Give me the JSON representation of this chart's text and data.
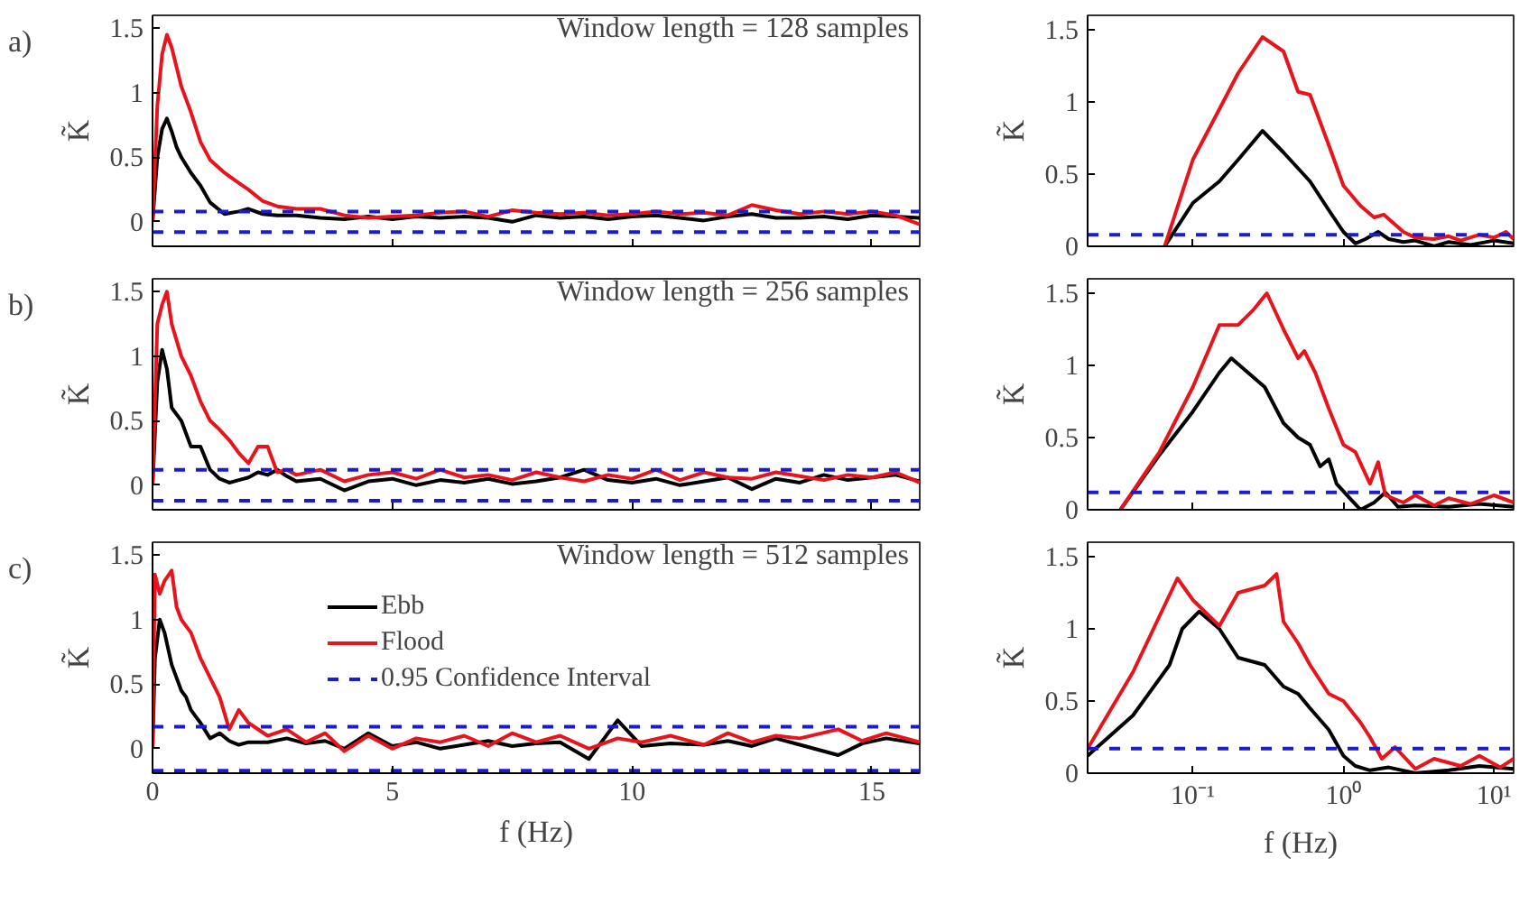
{
  "chart_data": [
    {
      "type": "line",
      "ylabel": "K̃",
      "annotations": [
        "a)",
        "Window length = 128 samples"
      ],
      "tick_labels": "y",
      "x": [
        0,
        0.1,
        0.2,
        0.3,
        0.4,
        0.5,
        0.6,
        0.8,
        1.0,
        1.2,
        1.5,
        1.8,
        2.0,
        2.3,
        2.6,
        3.0,
        3.5,
        4.0,
        4.5,
        5.0,
        5.5,
        6.0,
        6.5,
        7.0,
        7.5,
        8.0,
        8.5,
        9.0,
        9.5,
        10.0,
        10.5,
        11.0,
        11.5,
        12.0,
        12.5,
        13.0,
        13.5,
        14.0,
        14.5,
        15.0,
        15.5,
        16.0
      ],
      "series": [
        {
          "color": "#000000",
          "values": [
            0,
            0.5,
            0.72,
            0.8,
            0.7,
            0.58,
            0.5,
            0.38,
            0.28,
            0.15,
            0.06,
            0.08,
            0.1,
            0.06,
            0.05,
            0.05,
            0.03,
            0.02,
            0.04,
            0.02,
            0.04,
            0.03,
            0.04,
            0.03,
            0.0,
            0.05,
            0.03,
            0.04,
            0.02,
            0.04,
            0.05,
            0.03,
            0.01,
            0.04,
            0.06,
            0.03,
            0.03,
            0.04,
            0.02,
            0.05,
            0.04,
            0.03
          ]
        },
        {
          "color": "#e8141c",
          "values": [
            0,
            0.9,
            1.3,
            1.45,
            1.35,
            1.2,
            1.05,
            0.85,
            0.62,
            0.48,
            0.38,
            0.3,
            0.25,
            0.16,
            0.12,
            0.1,
            0.1,
            0.05,
            0.03,
            0.04,
            0.05,
            0.07,
            0.08,
            0.04,
            0.09,
            0.07,
            0.06,
            0.07,
            0.05,
            0.06,
            0.08,
            0.06,
            0.07,
            0.05,
            0.13,
            0.09,
            0.06,
            0.08,
            0.06,
            0.08,
            0.05,
            -0.02
          ]
        }
      ],
      "ref_lines": [
        {
          "axis": "y",
          "value": 0.08,
          "color": "#1c1ccc",
          "line_style": "dashed"
        },
        {
          "axis": "y",
          "value": -0.08,
          "color": "#1c1ccc",
          "line_style": "dashed"
        }
      ],
      "xlim": [
        0,
        16
      ],
      "ylim": [
        -0.19,
        1.6
      ],
      "xticks": [
        0,
        5,
        10,
        15
      ],
      "yticks": [
        0,
        0.5,
        1,
        1.5
      ],
      "line_style": "solid",
      "legend": false
    },
    {
      "type": "line",
      "ylabel": "K̃",
      "tick_labels": "y",
      "log": "x",
      "series": [
        {
          "color": "#000000",
          "x": [
            0.065,
            0.1,
            0.15,
            0.2,
            0.29,
            0.4,
            0.6,
            0.8,
            1.0,
            1.2,
            1.4,
            1.7,
            2,
            2.5,
            3,
            4,
            5,
            7,
            10,
            13.5
          ],
          "values": [
            0,
            0.3,
            0.45,
            0.6,
            0.8,
            0.65,
            0.45,
            0.25,
            0.1,
            0.02,
            0.05,
            0.1,
            0.05,
            0.03,
            0.04,
            0.0,
            0.03,
            0.01,
            0.04,
            0.02
          ]
        },
        {
          "color": "#e8141c",
          "x": [
            0.065,
            0.1,
            0.15,
            0.2,
            0.29,
            0.4,
            0.5,
            0.6,
            0.8,
            1.0,
            1.3,
            1.6,
            1.85,
            2.5,
            3,
            4,
            5,
            6,
            8,
            10,
            12,
            13.5
          ],
          "values": [
            0,
            0.6,
            0.95,
            1.2,
            1.45,
            1.35,
            1.07,
            1.05,
            0.7,
            0.42,
            0.28,
            0.2,
            0.22,
            0.1,
            0.06,
            0.05,
            0.07,
            0.04,
            0.08,
            0.06,
            0.1,
            0.05
          ]
        }
      ],
      "ref_lines": [
        {
          "axis": "y",
          "value": 0.08,
          "color": "#1c1ccc",
          "line_style": "dashed"
        }
      ],
      "xlim": [
        0.02,
        13.5
      ],
      "ylim": [
        0,
        1.6
      ],
      "xticks": [
        0.1,
        1,
        10
      ],
      "yticks": [
        0,
        0.5,
        1,
        1.5
      ],
      "line_style": "solid",
      "legend": false
    },
    {
      "type": "line",
      "ylabel": "K̃",
      "annotations": [
        "b)",
        "Window length = 256 samples"
      ],
      "tick_labels": "y",
      "x": [
        0,
        0.1,
        0.2,
        0.3,
        0.4,
        0.6,
        0.8,
        1.0,
        1.2,
        1.4,
        1.6,
        1.8,
        2.0,
        2.2,
        2.4,
        2.6,
        2.8,
        3.0,
        3.5,
        4.0,
        4.5,
        5.0,
        5.5,
        6.0,
        6.5,
        7.0,
        7.5,
        8.0,
        8.5,
        9.0,
        9.5,
        10.0,
        10.5,
        11.0,
        11.5,
        12.0,
        12.5,
        13.0,
        13.5,
        14.0,
        14.5,
        15.0,
        15.5,
        16.0
      ],
      "series": [
        {
          "color": "#000000",
          "values": [
            0,
            0.8,
            1.05,
            0.9,
            0.6,
            0.5,
            0.3,
            0.3,
            0.12,
            0.05,
            0.02,
            0.04,
            0.06,
            0.1,
            0.08,
            0.12,
            0.07,
            0.03,
            0.05,
            -0.04,
            0.03,
            0.05,
            0.0,
            0.04,
            0.02,
            0.05,
            0.01,
            0.03,
            0.06,
            0.12,
            0.04,
            0.02,
            0.05,
            0.0,
            0.03,
            0.06,
            -0.03,
            0.05,
            0.02,
            0.08,
            0.04,
            0.06,
            0.08,
            0.03
          ]
        },
        {
          "color": "#e8141c",
          "values": [
            0,
            1.25,
            1.4,
            1.5,
            1.25,
            1.0,
            0.85,
            0.65,
            0.5,
            0.43,
            0.35,
            0.25,
            0.17,
            0.3,
            0.3,
            0.1,
            0.12,
            0.08,
            0.12,
            0.03,
            0.08,
            0.1,
            0.05,
            0.12,
            0.06,
            0.08,
            0.04,
            0.1,
            0.06,
            0.03,
            0.08,
            0.05,
            0.12,
            0.04,
            0.1,
            0.06,
            0.05,
            0.1,
            0.07,
            0.04,
            0.08,
            0.06,
            0.1,
            0.02
          ]
        }
      ],
      "ref_lines": [
        {
          "axis": "y",
          "value": 0.12,
          "color": "#1c1ccc",
          "line_style": "dashed"
        },
        {
          "axis": "y",
          "value": -0.12,
          "color": "#1c1ccc",
          "line_style": "dashed"
        }
      ],
      "xlim": [
        0,
        16
      ],
      "ylim": [
        -0.19,
        1.6
      ],
      "xticks": [
        0,
        5,
        10,
        15
      ],
      "yticks": [
        0,
        0.5,
        1,
        1.5
      ],
      "line_style": "solid",
      "legend": false
    },
    {
      "type": "line",
      "ylabel": "K̃",
      "tick_labels": "y",
      "log": "x",
      "series": [
        {
          "color": "#000000",
          "x": [
            0.033,
            0.06,
            0.1,
            0.15,
            0.18,
            0.3,
            0.4,
            0.5,
            0.6,
            0.7,
            0.8,
            0.9,
            1.1,
            1.3,
            1.6,
            1.9,
            2.3,
            3,
            5,
            8,
            13.5
          ],
          "values": [
            0,
            0.38,
            0.68,
            0.95,
            1.05,
            0.85,
            0.6,
            0.5,
            0.45,
            0.3,
            0.35,
            0.18,
            0.08,
            0.0,
            0.05,
            0.12,
            0.02,
            0.03,
            0.02,
            0.04,
            0.02
          ]
        },
        {
          "color": "#e8141c",
          "x": [
            0.033,
            0.06,
            0.1,
            0.15,
            0.2,
            0.25,
            0.31,
            0.4,
            0.5,
            0.55,
            0.65,
            0.8,
            1.0,
            1.2,
            1.5,
            1.7,
            1.9,
            2.5,
            3,
            4,
            5,
            7,
            10,
            13.5
          ],
          "values": [
            0,
            0.4,
            0.85,
            1.28,
            1.28,
            1.38,
            1.5,
            1.25,
            1.05,
            1.1,
            0.95,
            0.7,
            0.45,
            0.4,
            0.18,
            0.33,
            0.1,
            0.05,
            0.1,
            0.03,
            0.08,
            0.04,
            0.1,
            0.05
          ]
        }
      ],
      "ref_lines": [
        {
          "axis": "y",
          "value": 0.12,
          "color": "#1c1ccc",
          "line_style": "dashed"
        }
      ],
      "xlim": [
        0.02,
        13.5
      ],
      "ylim": [
        0,
        1.6
      ],
      "xticks": [
        0.1,
        1,
        10
      ],
      "yticks": [
        0,
        0.5,
        1,
        1.5
      ],
      "line_style": "solid",
      "legend": false
    },
    {
      "type": "line",
      "ylabel": "K̃",
      "xlabel": "f (Hz)",
      "annotations": [
        "c)",
        "Window length = 512 samples"
      ],
      "x": [
        0,
        0.05,
        0.15,
        0.25,
        0.4,
        0.5,
        0.6,
        0.7,
        0.8,
        0.9,
        1.0,
        1.2,
        1.4,
        1.6,
        1.8,
        2.0,
        2.4,
        2.8,
        3.2,
        3.6,
        4.0,
        4.5,
        5.0,
        5.5,
        6.0,
        6.5,
        7.0,
        7.5,
        8.0,
        8.5,
        9.1,
        9.7,
        10.2,
        10.8,
        11.5,
        12.0,
        12.5,
        13.0,
        13.5,
        14.3,
        14.8,
        15.3,
        16.0
      ],
      "series": [
        {
          "name": "Ebb",
          "color": "#000000",
          "values": [
            0,
            0.7,
            1.0,
            0.9,
            0.65,
            0.55,
            0.45,
            0.4,
            0.3,
            0.25,
            0.2,
            0.08,
            0.12,
            0.06,
            0.03,
            0.05,
            0.05,
            0.08,
            0.04,
            0.06,
            0.0,
            0.12,
            0.02,
            0.05,
            0.0,
            0.03,
            0.06,
            0.02,
            0.04,
            0.05,
            -0.08,
            0.22,
            0.02,
            0.04,
            0.03,
            0.06,
            0.02,
            0.08,
            0.03,
            -0.05,
            0.04,
            0.08,
            0.04
          ]
        },
        {
          "name": "Flood",
          "color": "#e8141c",
          "values": [
            0,
            1.35,
            1.2,
            1.3,
            1.38,
            1.1,
            1.0,
            0.95,
            0.9,
            0.8,
            0.7,
            0.55,
            0.4,
            0.15,
            0.3,
            0.2,
            0.1,
            0.15,
            0.05,
            0.12,
            -0.02,
            0.1,
            0.0,
            0.08,
            0.05,
            0.1,
            0.02,
            0.12,
            0.05,
            0.1,
            0.0,
            0.08,
            0.05,
            0.1,
            0.03,
            0.12,
            0.05,
            0.1,
            0.08,
            0.15,
            0.06,
            0.12,
            0.05
          ]
        }
      ],
      "ref_lines": [
        {
          "axis": "y",
          "value": 0.17,
          "label": "0.95 Confidence Interval",
          "color": "#1c1ccc",
          "line_style": "dashed"
        },
        {
          "axis": "y",
          "value": -0.17,
          "color": "#1c1ccc",
          "line_style": "dashed"
        }
      ],
      "xlim": [
        0,
        16
      ],
      "ylim": [
        -0.19,
        1.6
      ],
      "xticks": [
        0,
        5,
        10,
        15
      ],
      "yticks": [
        0,
        0.5,
        1,
        1.5
      ],
      "line_style": "solid",
      "legend": "top left"
    },
    {
      "type": "line",
      "ylabel": "K̃",
      "xlabel": "f (Hz)",
      "log": "x",
      "series": [
        {
          "color": "#000000",
          "x": [
            0.02,
            0.04,
            0.07,
            0.085,
            0.11,
            0.15,
            0.2,
            0.3,
            0.4,
            0.5,
            0.6,
            0.8,
            1.0,
            1.2,
            1.5,
            2,
            3,
            5,
            8,
            13.5
          ],
          "values": [
            0.12,
            0.4,
            0.75,
            1.0,
            1.12,
            1.0,
            0.8,
            0.75,
            0.6,
            0.55,
            0.45,
            0.3,
            0.12,
            0.05,
            0.02,
            0.04,
            0.0,
            0.02,
            0.05,
            0.03
          ]
        },
        {
          "color": "#e8141c",
          "x": [
            0.02,
            0.04,
            0.079,
            0.1,
            0.15,
            0.2,
            0.3,
            0.36,
            0.4,
            0.5,
            0.6,
            0.8,
            1.0,
            1.3,
            1.5,
            1.8,
            2.2,
            3,
            4,
            6,
            8,
            11,
            13.5
          ],
          "values": [
            0.17,
            0.7,
            1.35,
            1.2,
            1.02,
            1.25,
            1.3,
            1.38,
            1.05,
            0.9,
            0.75,
            0.55,
            0.5,
            0.35,
            0.25,
            0.1,
            0.18,
            0.03,
            0.1,
            0.05,
            0.12,
            0.04,
            0.1
          ]
        }
      ],
      "ref_lines": [
        {
          "axis": "y",
          "value": 0.17,
          "color": "#1c1ccc",
          "line_style": "dashed"
        }
      ],
      "xlim": [
        0.02,
        13.5
      ],
      "ylim": [
        0,
        1.6
      ],
      "xticks": [
        {
          "value": 0.1,
          "label": "10⁻¹"
        },
        {
          "value": 1,
          "label": "10⁰"
        },
        {
          "value": 10,
          "label": "10¹"
        }
      ],
      "yticks": [
        0,
        0.5,
        1,
        1.5
      ],
      "line_style": "solid",
      "legend": false
    }
  ]
}
